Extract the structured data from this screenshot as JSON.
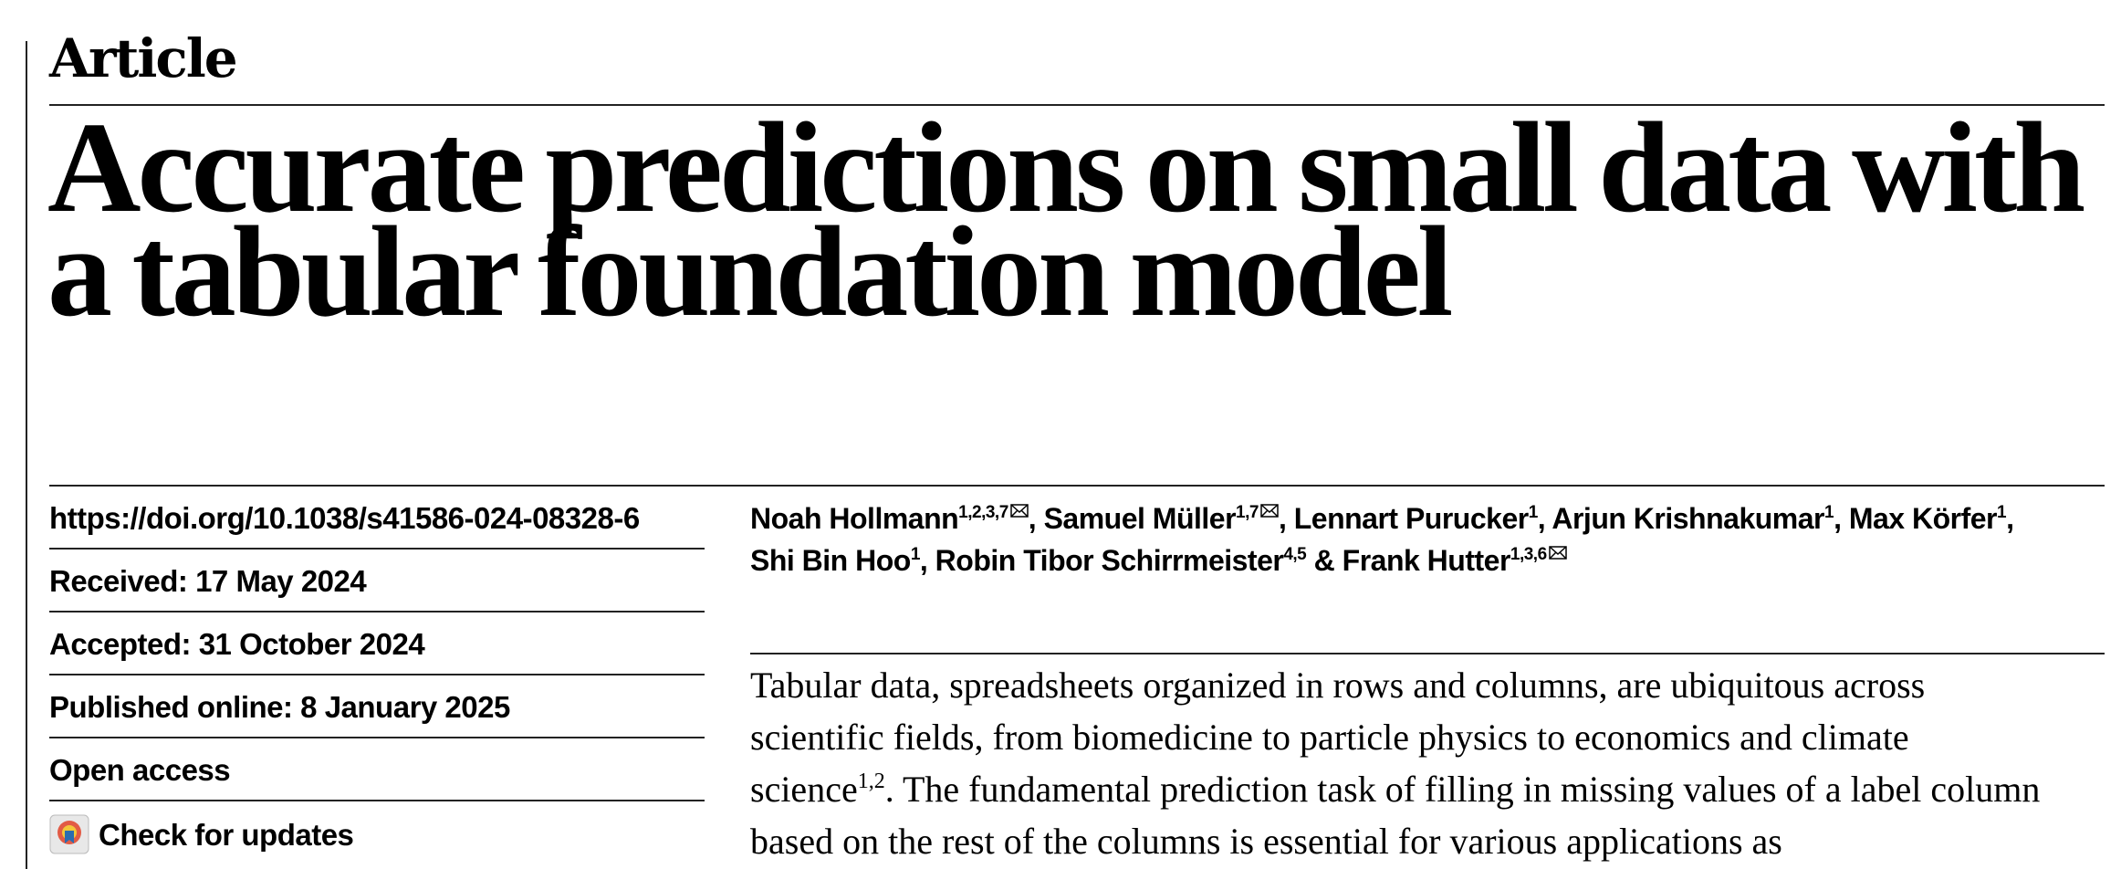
{
  "header": {
    "label": "Article",
    "title": "Accurate predictions on small data with a tabular foundation model"
  },
  "meta": [
    "https://doi.org/10.1038/s41586-024-08328-6",
    "Received: 17 May 2024",
    "Accepted: 31 October 2024",
    "Published online: 8 January 2025",
    "Open access",
    "Check for updates"
  ],
  "authors": [
    {
      "name": "Noah Hollmann",
      "affiliations": "1,2,3,7",
      "email": true,
      "separator": ", "
    },
    {
      "name": "Samuel Müller",
      "affiliations": "1,7",
      "email": true,
      "separator": ", "
    },
    {
      "name": "Lennart Purucker",
      "affiliations": "1",
      "email": false,
      "separator": ", "
    },
    {
      "name": "Arjun Krishnakumar",
      "affiliations": "1",
      "email": false,
      "separator": ", "
    },
    {
      "name": "Max Körfer",
      "affiliations": "1",
      "email": false,
      "separator": ", "
    },
    {
      "name": "Shi Bin Hoo",
      "affiliations": "1",
      "email": false,
      "separator": ", "
    },
    {
      "name": "Robin Tibor Schirrmeister",
      "affiliations": "4,5",
      "email": false,
      "separator": " & "
    },
    {
      "name": "Frank Hutter",
      "affiliations": "1,3,6",
      "email": true,
      "separator": null
    }
  ],
  "abstract": {
    "text_before": "Tabular data, spreadsheets organized in rows and columns, are ubiquitous across scientific fields, from biomedicine to particle physics to economics and climate science",
    "citation": "1,2",
    "text_after": ". The fundamental prediction task of filling in missing values of a label column based on the rest of the columns is essential for various applications as"
  }
}
